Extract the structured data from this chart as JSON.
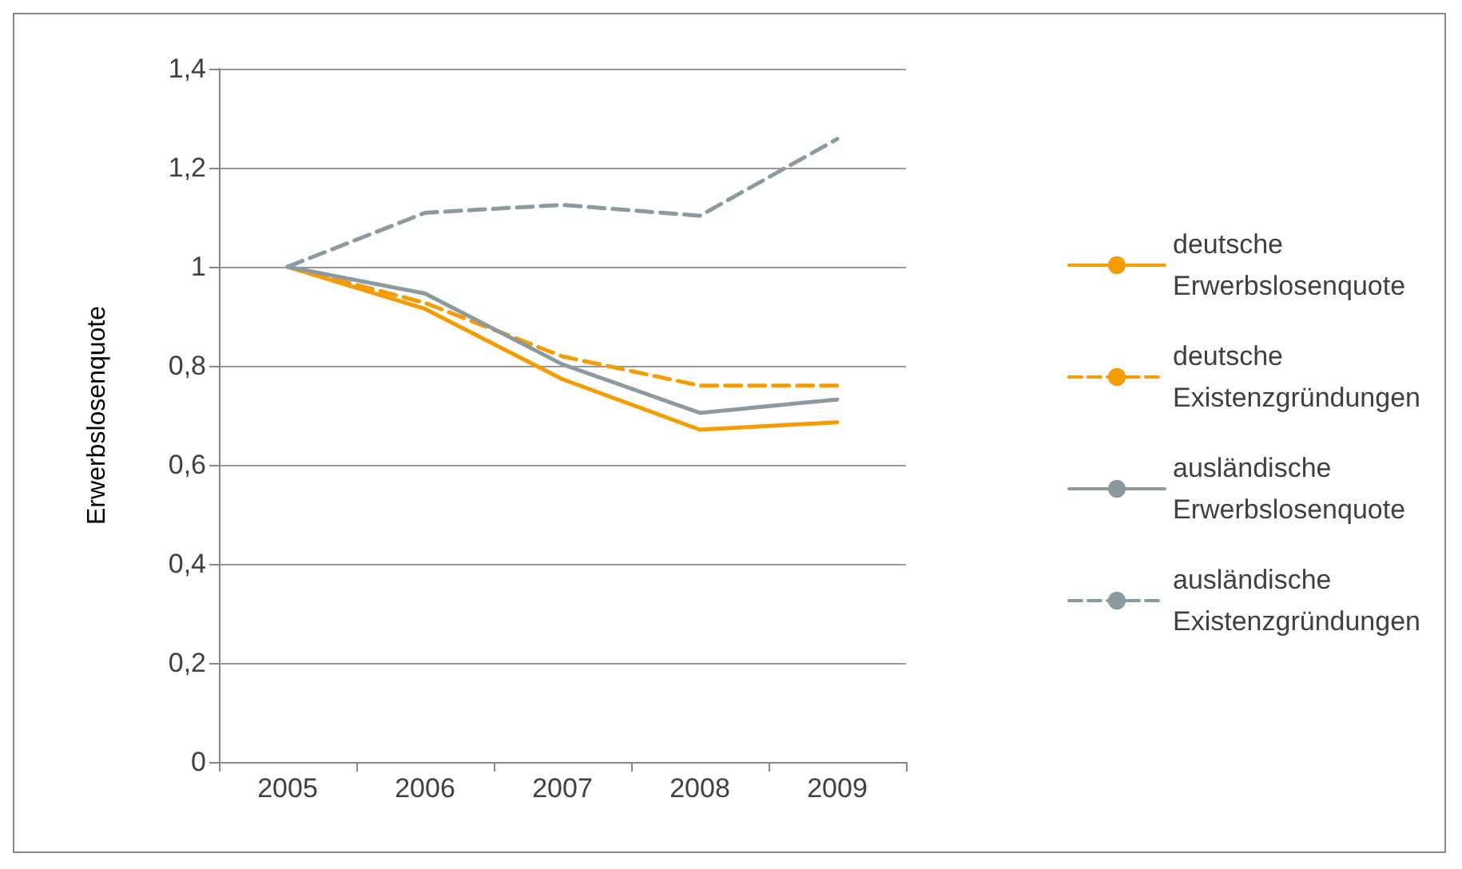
{
  "chart_data": {
    "type": "line",
    "ylabel": "Erwerbslosenquote",
    "categories": [
      "2005",
      "2006",
      "2007",
      "2008",
      "2009"
    ],
    "series": [
      {
        "name": "deutsche Erwerbslosenquote",
        "color": "#f59c00",
        "line_style": "solid",
        "values": [
          1,
          0.915,
          0.773,
          0.671,
          0.686
        ]
      },
      {
        "name": "deutsche Existenzgründungen",
        "color": "#f59c00",
        "line_style": "dashed",
        "values": [
          1,
          0.927,
          0.819,
          0.76,
          0.76
        ]
      },
      {
        "name": "ausländische Erwerbslosenquote",
        "color": "#8c9aa0",
        "line_style": "solid",
        "values": [
          1,
          0.946,
          0.803,
          0.705,
          0.732
        ]
      },
      {
        "name": "ausländische Existenzgründungen",
        "color": "#8c9aa0",
        "line_style": "dashed",
        "values": [
          1,
          1.109,
          1.125,
          1.103,
          1.258
        ]
      }
    ],
    "ylim": [
      0,
      1.4
    ],
    "yticks": [
      0,
      {
        "value": 0.2,
        "label": "0,2"
      },
      {
        "value": 0.4,
        "label": "0,4"
      },
      {
        "value": 0.6,
        "label": "0,6"
      },
      {
        "value": 0.8,
        "label": "0,8"
      },
      1,
      {
        "value": 1.2,
        "label": "1,2"
      },
      {
        "value": 1.4,
        "label": "1,4"
      }
    ],
    "grid": "y",
    "legend": "right",
    "marker": "none"
  }
}
